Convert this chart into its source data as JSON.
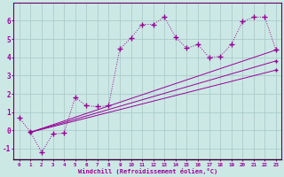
{
  "xlabel": "Windchill (Refroidissement éolien,°C)",
  "background_color": "#cce8e4",
  "line_color": "#990099",
  "xlim": [
    -0.5,
    23.5
  ],
  "ylim": [
    -1.6,
    7.0
  ],
  "xtick_labels": [
    "0",
    "1",
    "2",
    "3",
    "4",
    "5",
    "6",
    "7",
    "8",
    "9",
    "10",
    "11",
    "12",
    "13",
    "14",
    "15",
    "16",
    "17",
    "18",
    "19",
    "20",
    "21",
    "22",
    "23"
  ],
  "yticks": [
    -1,
    0,
    1,
    2,
    3,
    4,
    5,
    6
  ],
  "grid_color": "#aacccc",
  "series1_x": [
    0,
    1,
    2,
    3,
    4,
    5,
    6,
    7,
    8,
    9,
    10,
    11,
    12,
    13,
    14,
    15,
    16,
    17,
    18,
    19,
    20,
    21,
    22,
    23
  ],
  "series1_y": [
    0.7,
    -0.1,
    -1.2,
    -0.2,
    -0.15,
    1.8,
    1.35,
    1.3,
    1.35,
    4.45,
    5.05,
    5.8,
    5.8,
    6.2,
    5.1,
    4.5,
    4.7,
    4.0,
    4.05,
    4.7,
    5.95,
    6.2,
    6.2,
    4.4
  ],
  "series2_x": [
    1,
    23
  ],
  "series2_y": [
    -0.1,
    4.4
  ],
  "series3_x": [
    1,
    23
  ],
  "series3_y": [
    -0.1,
    3.8
  ],
  "series4_x": [
    1,
    23
  ],
  "series4_y": [
    -0.1,
    3.3
  ]
}
